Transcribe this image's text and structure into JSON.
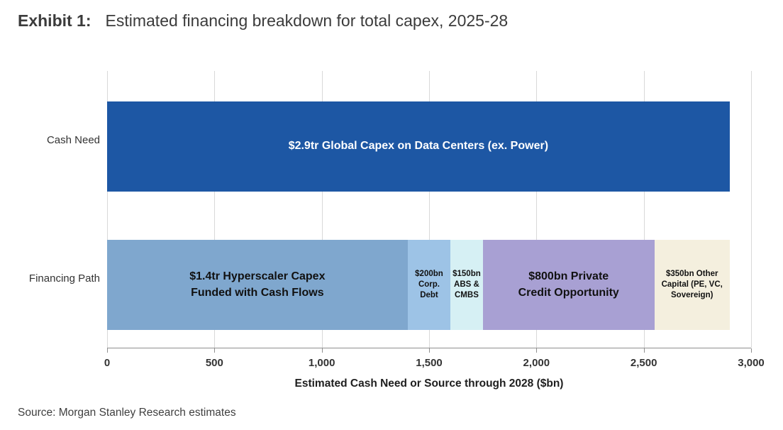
{
  "header": {
    "exhibit_label": "Exhibit 1:",
    "title": "Estimated financing breakdown for total capex, 2025-28"
  },
  "chart_data": {
    "type": "bar",
    "orientation": "horizontal",
    "stacked": true,
    "title": "Estimated financing breakdown for total capex, 2025-28",
    "xlabel": "Estimated Cash Need or Source through 2028 ($bn)",
    "ylabel": "",
    "xlim": [
      0,
      3000
    ],
    "xticks": [
      0,
      500,
      1000,
      1500,
      2000,
      2500,
      3000
    ],
    "xtick_labels": [
      "0",
      "500",
      "1,000",
      "1,500",
      "2,000",
      "2,500",
      "3,000"
    ],
    "grid": true,
    "legend": "none",
    "rows": [
      {
        "category": "Cash Need",
        "segments": [
          {
            "label": "$2.9tr Global Capex on Data Centers (ex. Power)",
            "value": 2900,
            "color": "#1D57A4",
            "text_color": "#ffffff"
          }
        ]
      },
      {
        "category": "Financing Path",
        "segments": [
          {
            "label": "$1.4tr Hyperscaler Capex\nFunded with Cash Flows",
            "value": 1400,
            "color": "#7FA7CE",
            "text_color": "#111111"
          },
          {
            "label": "$200bn\nCorp.\nDebt",
            "value": 200,
            "color": "#9DC3E6",
            "text_color": "#111111"
          },
          {
            "label": "$150bn\nABS &\nCMBS",
            "value": 150,
            "color": "#D6F0F4",
            "text_color": "#111111"
          },
          {
            "label": "$800bn Private\nCredit Opportunity",
            "value": 800,
            "color": "#A8A0D3",
            "text_color": "#111111"
          },
          {
            "label": "$350bn Other\nCapital (PE, VC,\nSovereign)",
            "value": 350,
            "color": "#F4EFDE",
            "text_color": "#111111"
          }
        ]
      }
    ]
  },
  "footer": {
    "source": "Source: Morgan Stanley Research estimates"
  }
}
